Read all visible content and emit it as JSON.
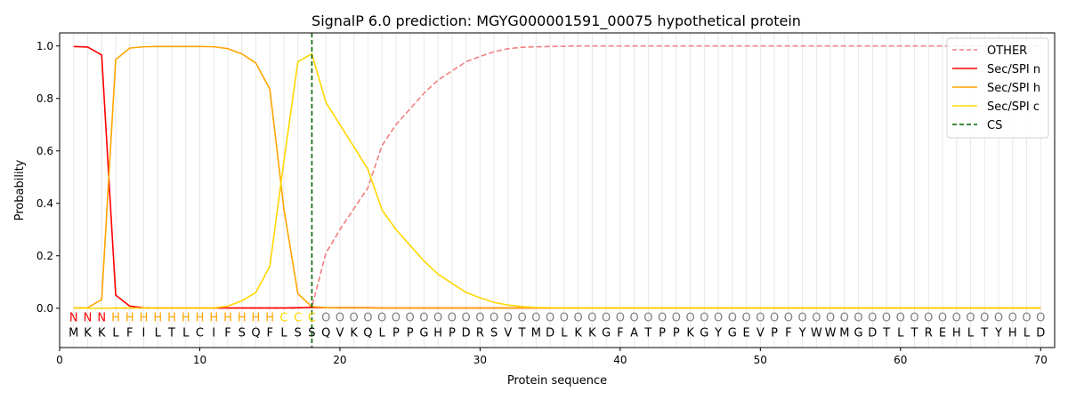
{
  "chart_data": {
    "type": "line",
    "title": "SignalP 6.0 prediction: MGYG000001591_00075 hypothetical protein",
    "xlabel": "Protein sequence",
    "ylabel": "Probability",
    "xlim": [
      0,
      71
    ],
    "ylim": [
      -0.15,
      1.05
    ],
    "x_ticks": [
      0,
      10,
      20,
      30,
      40,
      50,
      60,
      70
    ],
    "y_ticks": [
      0.0,
      0.2,
      0.4,
      0.6,
      0.8,
      1.0
    ],
    "x_tick_labels": [
      "0",
      "10",
      "20",
      "30",
      "40",
      "50",
      "60",
      "70"
    ],
    "y_tick_labels": [
      "0.0",
      "0.2",
      "0.4",
      "0.6",
      "0.8",
      "1.0"
    ],
    "grid": "vertical lines at each residue",
    "legend_position": "top-right",
    "sequence": [
      "M",
      "K",
      "K",
      "L",
      "F",
      "I",
      "L",
      "T",
      "L",
      "C",
      "I",
      "F",
      "S",
      "Q",
      "F",
      "L",
      "S",
      "S",
      "Q",
      "V",
      "K",
      "Q",
      "L",
      "P",
      "P",
      "G",
      "H",
      "P",
      "D",
      "R",
      "S",
      "V",
      "T",
      "M",
      "D",
      "L",
      "K",
      "K",
      "G",
      "F",
      "A",
      "T",
      "P",
      "P",
      "K",
      "G",
      "Y",
      "G",
      "E",
      "V",
      "P",
      "F",
      "Y",
      "W",
      "W",
      "M",
      "G",
      "D",
      "T",
      "L",
      "T",
      "R",
      "E",
      "H",
      "L",
      "T",
      "Y",
      "H",
      "L",
      "D"
    ],
    "region_labels": [
      "N",
      "N",
      "N",
      "H",
      "H",
      "H",
      "H",
      "H",
      "H",
      "H",
      "H",
      "H",
      "H",
      "H",
      "H",
      "C",
      "C",
      "C",
      "O",
      "O",
      "O",
      "O",
      "O",
      "O",
      "O",
      "O",
      "O",
      "O",
      "O",
      "O",
      "O",
      "O",
      "O",
      "O",
      "O",
      "O",
      "O",
      "O",
      "O",
      "O",
      "O",
      "O",
      "O",
      "O",
      "O",
      "O",
      "O",
      "O",
      "O",
      "O",
      "O",
      "O",
      "O",
      "O",
      "O",
      "O",
      "O",
      "O",
      "O",
      "O",
      "O",
      "O",
      "O",
      "O",
      "O",
      "O",
      "O",
      "O",
      "O",
      "O"
    ],
    "region_colors": {
      "N": "#ff0000",
      "H": "#ffa500",
      "C": "#ffd700",
      "O": "#808080"
    },
    "cleavage_site": 18,
    "x": [
      1,
      2,
      3,
      4,
      5,
      6,
      7,
      8,
      9,
      10,
      11,
      12,
      13,
      14,
      15,
      16,
      17,
      18,
      19,
      20,
      21,
      22,
      23,
      24,
      25,
      26,
      27,
      28,
      29,
      30,
      31,
      32,
      33,
      34,
      35,
      36,
      37,
      38,
      39,
      40,
      41,
      42,
      43,
      44,
      45,
      46,
      47,
      48,
      49,
      50,
      51,
      52,
      53,
      54,
      55,
      56,
      57,
      58,
      59,
      60,
      61,
      62,
      63,
      64,
      65,
      66,
      67,
      68,
      69,
      70
    ],
    "series": [
      {
        "name": "OTHER",
        "color": "#f08080",
        "dash": true,
        "values": [
          0,
          0,
          0,
          0,
          0,
          0,
          0,
          0,
          0,
          0,
          0,
          0,
          0,
          0,
          0,
          0,
          0,
          0.005,
          0.21,
          0.3,
          0.38,
          0.46,
          0.62,
          0.7,
          0.76,
          0.82,
          0.87,
          0.905,
          0.94,
          0.96,
          0.978,
          0.99,
          0.995,
          0.997,
          0.998,
          0.999,
          1,
          1,
          1,
          1,
          1,
          1,
          1,
          1,
          1,
          1,
          1,
          1,
          1,
          1,
          1,
          1,
          1,
          1,
          1,
          1,
          1,
          1,
          1,
          1,
          1,
          1,
          1,
          1,
          1,
          1,
          1,
          1,
          1,
          1
        ]
      },
      {
        "name": "Sec/SPI n",
        "color": "#ff0000",
        "dash": false,
        "values": [
          0.998,
          0.996,
          0.966,
          0.05,
          0.008,
          0.002,
          0.001,
          0.001,
          0.001,
          0.001,
          0.001,
          0.001,
          0.001,
          0.001,
          0.001,
          0.001,
          0.002,
          0.003,
          0.002,
          0.002,
          0.002,
          0.002,
          0.001,
          0.001,
          0.001,
          0.001,
          0.001,
          0.001,
          0.001,
          0.001,
          0.001,
          0.001,
          0.001,
          0.001,
          0.001,
          0.001,
          0.001,
          0.001,
          0.001,
          0.001,
          0.001,
          0.001,
          0.001,
          0.001,
          0.001,
          0.001,
          0.001,
          0.001,
          0.001,
          0.001,
          0.001,
          0.001,
          0.001,
          0.001,
          0.001,
          0.001,
          0.001,
          0.001,
          0.001,
          0.001,
          0.001,
          0.001,
          0.001,
          0.001,
          0.001,
          0.001,
          0.001,
          0.001,
          0.001,
          0.001
        ]
      },
      {
        "name": "Sec/SPI h",
        "color": "#ffa500",
        "dash": false,
        "values": [
          0.001,
          0.002,
          0.033,
          0.948,
          0.992,
          0.997,
          0.998,
          0.998,
          0.998,
          0.998,
          0.997,
          0.99,
          0.97,
          0.935,
          0.835,
          0.38,
          0.055,
          0.006,
          0.002,
          0.001,
          0.001,
          0.001,
          0.001,
          0.001,
          0.001,
          0.001,
          0.001,
          0.001,
          0.001,
          0.001,
          0.001,
          0.001,
          0.001,
          0.001,
          0.001,
          0.001,
          0.001,
          0.001,
          0.001,
          0.001,
          0.001,
          0.001,
          0.001,
          0.001,
          0.001,
          0.001,
          0.001,
          0.001,
          0.001,
          0.001,
          0.001,
          0.001,
          0.001,
          0.001,
          0.001,
          0.001,
          0.001,
          0.001,
          0.001,
          0.001,
          0.001,
          0.001,
          0.001,
          0.001,
          0.001,
          0.001,
          0.001,
          0.001,
          0.001,
          0.001
        ]
      },
      {
        "name": "Sec/SPI c",
        "color": "#ffd700",
        "dash": false,
        "values": [
          0,
          0,
          0,
          0.001,
          0.001,
          0.001,
          0.001,
          0.001,
          0.001,
          0.001,
          0.001,
          0.008,
          0.028,
          0.06,
          0.16,
          0.56,
          0.94,
          0.97,
          0.785,
          0.7,
          0.615,
          0.53,
          0.375,
          0.3,
          0.24,
          0.18,
          0.13,
          0.095,
          0.06,
          0.04,
          0.022,
          0.012,
          0.006,
          0.003,
          0.002,
          0.001,
          0.001,
          0.001,
          0.001,
          0.001,
          0.001,
          0.001,
          0.001,
          0.001,
          0.001,
          0.001,
          0.001,
          0.001,
          0.001,
          0.001,
          0.001,
          0.001,
          0.001,
          0.001,
          0.001,
          0.001,
          0.001,
          0.001,
          0.001,
          0.001,
          0.001,
          0.001,
          0.001,
          0.001,
          0.001,
          0.001,
          0.001,
          0.001,
          0.001,
          0.001
        ]
      }
    ],
    "legend": [
      {
        "name": "OTHER",
        "color": "#f08080",
        "dash": true
      },
      {
        "name": "Sec/SPI n",
        "color": "#ff0000",
        "dash": false
      },
      {
        "name": "Sec/SPI h",
        "color": "#ffa500",
        "dash": false
      },
      {
        "name": "Sec/SPI c",
        "color": "#ffd700",
        "dash": false
      },
      {
        "name": "CS",
        "color": "#006400",
        "dash": true
      }
    ]
  }
}
